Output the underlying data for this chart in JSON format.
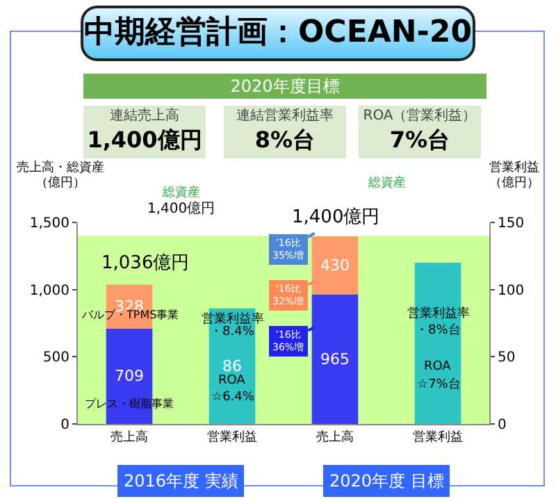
{
  "chart_data": {
    "type": "bar",
    "title": "中期経営計画：OCEAN-20",
    "categories": [
      "売上高",
      "営業利益",
      "売上高",
      "営業利益"
    ],
    "stacked": true,
    "series": [
      {
        "name": "プレス・樹脂事業",
        "color": "#3a3af0",
        "values": [
          709,
          null,
          965,
          null
        ],
        "value_labels": [
          "709",
          null,
          "965",
          null
        ]
      },
      {
        "name": "バルブ・TPMS事業",
        "color": "#ff9a6a",
        "values": [
          328,
          null,
          430,
          null
        ],
        "value_labels": [
          "328",
          null,
          "430",
          null
        ]
      },
      {
        "color": "#2ec4c4",
        "axis": "y2",
        "values": [
          null,
          86,
          null,
          120
        ],
        "value_labels": [
          null,
          "86",
          null,
          null
        ]
      }
    ],
    "ylim": [
      0,
      1500
    ],
    "yticks": [
      0,
      500,
      {
        "value": 1000,
        "label": "1,000"
      },
      {
        "value": 1500,
        "label": "1,500"
      }
    ],
    "y2lim": [
      0,
      150
    ],
    "y2ticks": [
      0,
      50,
      100,
      150
    ],
    "ylabel": "売上高・総資産（億円）",
    "y2label": "営業利益（億円）",
    "bands": [
      {
        "axis": "y",
        "from": 0,
        "to": 1400,
        "label": "総資産",
        "color": "#ccff99"
      }
    ],
    "grid": false,
    "annotations": [
      "2020年度目標",
      "連結売上高",
      "1,400億円",
      "連結営業利益率",
      "8%台",
      "ROA（営業利益）",
      "7%台",
      "1,400億円",
      "1,036億円",
      "営業利益率",
      "・8.4%",
      "ROA",
      "☆6.4%",
      "総資産",
      "1,400億円",
      "営業利益率",
      "・8%台",
      "ROA",
      "☆7%台",
      "’16比\n35%増",
      "’16比\n32%増",
      "’16比\n36%増",
      "2016年度 実績",
      "2020年度 目標"
    ]
  }
}
